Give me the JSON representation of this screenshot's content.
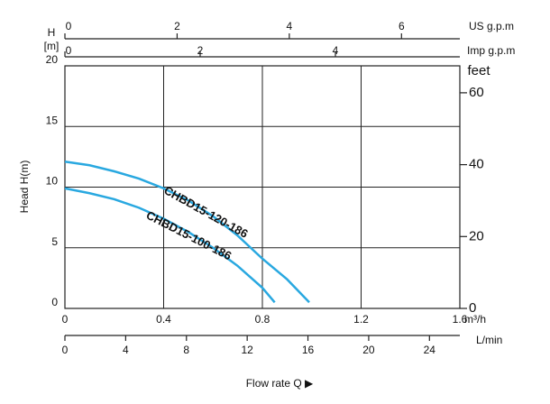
{
  "chart_data": {
    "type": "line",
    "y_label_short": "H",
    "y_unit_short": "[m]",
    "y_title": "Head H(m)",
    "x_title": "Flow rate Q ▶",
    "x_unit": "m³/h",
    "xlim": [
      0,
      1.6
    ],
    "xticks": [
      0,
      0.4,
      0.8,
      1.2,
      1.6
    ],
    "ylim": [
      0,
      20
    ],
    "yticks": [
      0,
      5,
      10,
      15,
      20
    ],
    "grid": true,
    "y2_unit": "feet",
    "y2lim": [
      0,
      67.5
    ],
    "y2ticks": [
      0,
      20,
      40,
      60
    ],
    "extra_x_axes": [
      {
        "position": "top",
        "label": "US g.p.m",
        "xlim": [
          0,
          7.04
        ],
        "xticks": [
          0,
          2,
          4,
          6
        ]
      },
      {
        "position": "top",
        "label": "Imp g.p.m",
        "xlim": [
          0,
          5.84
        ],
        "xticks": [
          0,
          2,
          4
        ]
      },
      {
        "position": "bottom",
        "label": "L/min",
        "xlim": [
          0,
          26
        ],
        "xticks": [
          0,
          4,
          8,
          12,
          16,
          20,
          24
        ]
      }
    ],
    "series": [
      {
        "name": "CHBD15-120-186",
        "color": "#29a8e0",
        "x": [
          0,
          0.1,
          0.2,
          0.3,
          0.4,
          0.5,
          0.6,
          0.7,
          0.8,
          0.9,
          0.99
        ],
        "values": [
          12.1,
          11.8,
          11.3,
          10.7,
          9.9,
          8.9,
          7.6,
          6.0,
          4.1,
          2.4,
          0.5
        ]
      },
      {
        "name": "CHBD15-100-186",
        "color": "#29a8e0",
        "x": [
          0,
          0.1,
          0.2,
          0.3,
          0.4,
          0.5,
          0.6,
          0.7,
          0.8,
          0.85
        ],
        "values": [
          9.9,
          9.5,
          9.0,
          8.3,
          7.4,
          6.3,
          5.0,
          3.5,
          1.7,
          0.5
        ]
      }
    ]
  }
}
